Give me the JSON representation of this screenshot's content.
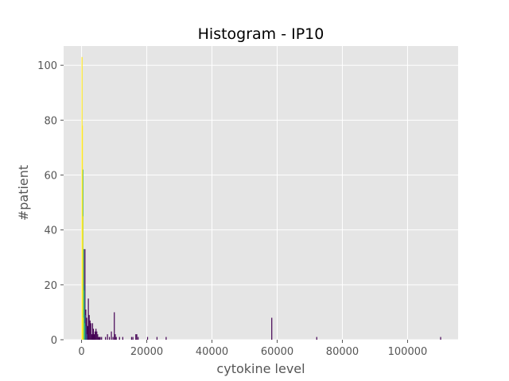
{
  "chart_data": {
    "type": "bar",
    "title": "Histogram - IP10",
    "xlabel": "cytokine level",
    "ylabel": "#patient",
    "xlim": [
      -5500,
      115500
    ],
    "ylim": [
      0,
      107
    ],
    "xticks": [
      0,
      20000,
      40000,
      60000,
      80000,
      100000
    ],
    "xtick_labels": [
      "0",
      "20000",
      "40000",
      "60000",
      "80000",
      "100000"
    ],
    "yticks": [
      0,
      20,
      40,
      60,
      80,
      100
    ],
    "ytick_labels": [
      "0",
      "20",
      "40",
      "60",
      "80",
      "100"
    ],
    "grid": true,
    "background": "#e5e5e5",
    "grid_color": "#ffffff",
    "series": [
      {
        "color": "#fde725",
        "bin_width": 110,
        "x": [
          0,
          110,
          220,
          330
        ],
        "values": [
          103,
          78,
          45,
          8
        ]
      },
      {
        "color": "#35b779",
        "bin_width": 170,
        "x": [
          280,
          450,
          620,
          790
        ],
        "values": [
          62,
          33,
          18,
          6
        ]
      },
      {
        "color": "#3b528b",
        "bin_width": 230,
        "x": [
          550,
          780,
          1010,
          1240,
          1470
        ],
        "values": [
          33,
          20,
          9,
          5,
          2
        ]
      },
      {
        "color": "#440154",
        "bin_width": 260,
        "x": [
          900,
          1160,
          1420,
          1680,
          1940,
          2200,
          2460,
          2720,
          2980,
          3240,
          3500,
          3760,
          4020,
          4280,
          4540,
          4800,
          5060,
          5320,
          5580,
          6000,
          7200,
          7800,
          8400,
          9000,
          9500,
          9900,
          10200,
          10500,
          11500,
          12500,
          15200,
          15600,
          16500,
          16800,
          17200,
          20100,
          23000,
          25800,
          58200,
          72000,
          110000
        ],
        "values": [
          33,
          11,
          8,
          5,
          15,
          9,
          7,
          6,
          2,
          6,
          4,
          2,
          3,
          4,
          3,
          2,
          1,
          1,
          1,
          1,
          1,
          2,
          1,
          3,
          1,
          10,
          2,
          1,
          1,
          1,
          1,
          1,
          2,
          2,
          1,
          1,
          1,
          1,
          8,
          1,
          1
        ]
      }
    ]
  }
}
